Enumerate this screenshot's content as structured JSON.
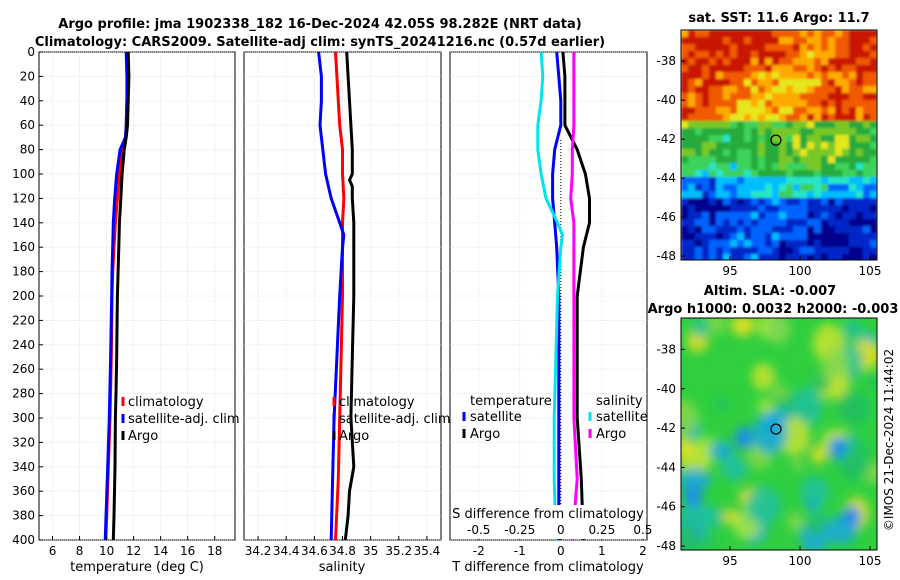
{
  "header": {
    "title_line1": "Argo profile: jma 1902338_182 16-Dec-2024 42.05S 98.282E (NRT data)",
    "title_line2": "Climatology: CARS2009. Satellite-adj clim: synTS_20241216.nc (0.57d earlier)"
  },
  "colors": {
    "climatology": "#ff0000",
    "satellite": "#0000ff",
    "argo": "#000000",
    "sal_satellite": "#00e5ee",
    "sal_argo": "#ff00ff"
  },
  "chart_data": [
    {
      "type": "line",
      "name": "temperature-profile",
      "xlabel": "temperature (deg C)",
      "ylabel": "depth",
      "xlim": [
        5,
        19.5
      ],
      "ylim": [
        0,
        400
      ],
      "xticks": [
        "6",
        "8",
        "10",
        "12",
        "14",
        "16",
        "18"
      ],
      "xtick_values": [
        6,
        8,
        10,
        12,
        14,
        16,
        18
      ],
      "yticks": [
        "0",
        "20",
        "40",
        "60",
        "80",
        "100",
        "120",
        "140",
        "160",
        "180",
        "200",
        "220",
        "240",
        "260",
        "280",
        "300",
        "320",
        "340",
        "360",
        "380",
        "400"
      ],
      "ytick_values": [
        0,
        20,
        40,
        60,
        80,
        100,
        120,
        140,
        160,
        180,
        200,
        220,
        240,
        260,
        280,
        300,
        320,
        340,
        360,
        380,
        400
      ],
      "legend": [
        "climatology",
        "satellite-adj. clim",
        "Argo"
      ],
      "series": [
        {
          "name": "climatology",
          "depth": [
            0,
            20,
            40,
            60,
            70,
            80,
            100,
            120,
            140,
            160,
            180,
            200,
            250,
            300,
            350,
            400
          ],
          "values": [
            11.55,
            11.55,
            11.5,
            11.45,
            11.4,
            11.2,
            10.95,
            10.8,
            10.65,
            10.55,
            10.45,
            10.4,
            10.35,
            10.25,
            10.1,
            9.95
          ]
        },
        {
          "name": "satellite-adj. clim",
          "depth": [
            0,
            20,
            40,
            60,
            70,
            80,
            100,
            120,
            140,
            160,
            180,
            200,
            250,
            300,
            350,
            400
          ],
          "values": [
            11.45,
            11.5,
            11.5,
            11.45,
            11.4,
            11.0,
            10.75,
            10.6,
            10.5,
            10.45,
            10.4,
            10.38,
            10.3,
            10.2,
            10.05,
            9.9
          ]
        },
        {
          "name": "Argo",
          "depth": [
            0,
            20,
            40,
            60,
            70,
            80,
            100,
            120,
            140,
            160,
            180,
            200,
            220,
            250,
            280,
            300,
            340,
            380,
            400
          ],
          "values": [
            11.6,
            11.65,
            11.6,
            11.55,
            11.45,
            11.3,
            11.15,
            11.05,
            10.95,
            10.9,
            10.85,
            10.8,
            10.78,
            10.75,
            10.7,
            10.65,
            10.62,
            10.55,
            10.5
          ]
        }
      ]
    },
    {
      "type": "line",
      "name": "salinity-profile",
      "xlabel": "salinity",
      "ylabel": "depth",
      "xlim": [
        34.1,
        35.5
      ],
      "ylim": [
        0,
        400
      ],
      "xticks": [
        "34.2",
        "34.4",
        "34.6",
        "34.8",
        "35",
        "35.2",
        "35.4"
      ],
      "xtick_values": [
        34.2,
        34.4,
        34.6,
        34.8,
        35.0,
        35.2,
        35.4
      ],
      "legend": [
        "climatology",
        "satellite-adj. clim",
        "Argo"
      ],
      "series": [
        {
          "name": "climatology",
          "depth": [
            0,
            20,
            40,
            60,
            80,
            100,
            120,
            140,
            160,
            180,
            200,
            250,
            300,
            350,
            400
          ],
          "values": [
            34.75,
            34.76,
            34.77,
            34.78,
            34.8,
            34.8,
            34.81,
            34.8,
            34.8,
            34.8,
            34.8,
            34.79,
            34.78,
            34.77,
            34.75
          ]
        },
        {
          "name": "satellite-adj. clim",
          "depth": [
            0,
            20,
            40,
            60,
            80,
            100,
            120,
            140,
            150,
            160,
            180,
            200,
            250,
            300,
            350,
            400
          ],
          "values": [
            34.63,
            34.65,
            34.65,
            34.64,
            34.66,
            34.68,
            34.72,
            34.78,
            34.81,
            34.8,
            34.79,
            34.78,
            34.76,
            34.74,
            34.73,
            34.72
          ]
        },
        {
          "name": "Argo",
          "depth": [
            0,
            20,
            40,
            60,
            80,
            100,
            105,
            110,
            120,
            140,
            160,
            180,
            200,
            250,
            300,
            340,
            360,
            380,
            400
          ],
          "values": [
            34.83,
            34.84,
            34.85,
            34.86,
            34.87,
            34.87,
            34.85,
            34.87,
            34.87,
            34.88,
            34.88,
            34.88,
            34.88,
            34.87,
            34.86,
            34.88,
            34.85,
            34.84,
            34.82
          ]
        }
      ]
    },
    {
      "type": "line",
      "name": "difference-profile",
      "xlabel": "T difference from climatology",
      "xlabel_top": "S difference from climatology",
      "xlim": [
        -2.7,
        2.1
      ],
      "ylim": [
        0,
        400
      ],
      "xticks": [
        "-2",
        "-1",
        "0",
        "1",
        "2"
      ],
      "xtick_values": [
        -2,
        -1,
        0,
        1,
        2
      ],
      "s_xticks": [
        "-0.5",
        "-0.25",
        "0",
        "0.25",
        "0.5"
      ],
      "s_xtick_values": [
        -0.5,
        -0.25,
        0,
        0.25,
        0.5
      ],
      "legend_temperature": {
        "title": "temperature",
        "items": [
          "satellite",
          "Argo"
        ]
      },
      "legend_salinity": {
        "title": "salinity",
        "items": [
          "satellite",
          "Argo"
        ]
      },
      "series": [
        {
          "name": "temperature satellite",
          "depth": [
            0,
            20,
            40,
            60,
            80,
            100,
            120,
            140,
            160,
            200,
            250,
            300,
            350,
            400
          ],
          "values": [
            -0.1,
            -0.05,
            0,
            0,
            -0.15,
            -0.2,
            -0.2,
            -0.15,
            -0.1,
            -0.05,
            -0.05,
            -0.05,
            -0.05,
            -0.05
          ]
        },
        {
          "name": "temperature Argo",
          "depth": [
            0,
            20,
            40,
            60,
            80,
            100,
            120,
            140,
            160,
            200,
            250,
            300,
            350,
            400
          ],
          "values": [
            0.05,
            0.1,
            0.1,
            0.1,
            0.4,
            0.6,
            0.7,
            0.7,
            0.55,
            0.4,
            0.4,
            0.4,
            0.5,
            0.55
          ]
        },
        {
          "name": "salinity satellite",
          "depth": [
            0,
            20,
            40,
            60,
            80,
            100,
            120,
            140,
            150,
            160,
            200,
            250,
            300,
            350,
            400
          ],
          "values": [
            -0.12,
            -0.11,
            -0.12,
            -0.14,
            -0.14,
            -0.12,
            -0.09,
            -0.02,
            0.01,
            0,
            -0.02,
            -0.03,
            -0.04,
            -0.04,
            -0.03
          ]
        },
        {
          "name": "salinity Argo",
          "depth": [
            0,
            20,
            40,
            60,
            80,
            100,
            120,
            140,
            160,
            200,
            250,
            300,
            350,
            400
          ],
          "values": [
            0.08,
            0.08,
            0.08,
            0.08,
            0.07,
            0.07,
            0.06,
            0.08,
            0.08,
            0.08,
            0.08,
            0.08,
            0.1,
            0.07
          ]
        }
      ]
    },
    {
      "type": "heatmap",
      "name": "sst-map",
      "title": "sat. SST: 11.6 Argo: 11.7",
      "xticks": [
        "95",
        "100",
        "105"
      ],
      "xtick_values": [
        95,
        100,
        105
      ],
      "yticks": [
        "-38",
        "-40",
        "-42",
        "-44",
        "-46",
        "-48"
      ],
      "ytick_values": [
        -38,
        -40,
        -42,
        -44,
        -46,
        -48
      ],
      "xlim": [
        91.5,
        105.5
      ],
      "ylim": [
        -48.2,
        -36.4
      ],
      "argo_position": [
        98.282,
        -42.05
      ]
    },
    {
      "type": "heatmap",
      "name": "sla-map",
      "title_line1": "Altim. SLA: -0.007",
      "title_line2": "Argo h1000: 0.0032 h2000: -0.003",
      "xticks": [
        "95",
        "100",
        "105"
      ],
      "xtick_values": [
        95,
        100,
        105
      ],
      "yticks": [
        "-38",
        "-40",
        "-42",
        "-44",
        "-46",
        "-48"
      ],
      "ytick_values": [
        -38,
        -40,
        -42,
        -44,
        -46,
        -48
      ],
      "xlim": [
        91.5,
        105.5
      ],
      "ylim": [
        -48.2,
        -36.4
      ],
      "argo_position": [
        98.282,
        -42.05
      ]
    }
  ],
  "footer": {
    "credit": "©IMOS 21-Dec-2024 11:44:02"
  }
}
